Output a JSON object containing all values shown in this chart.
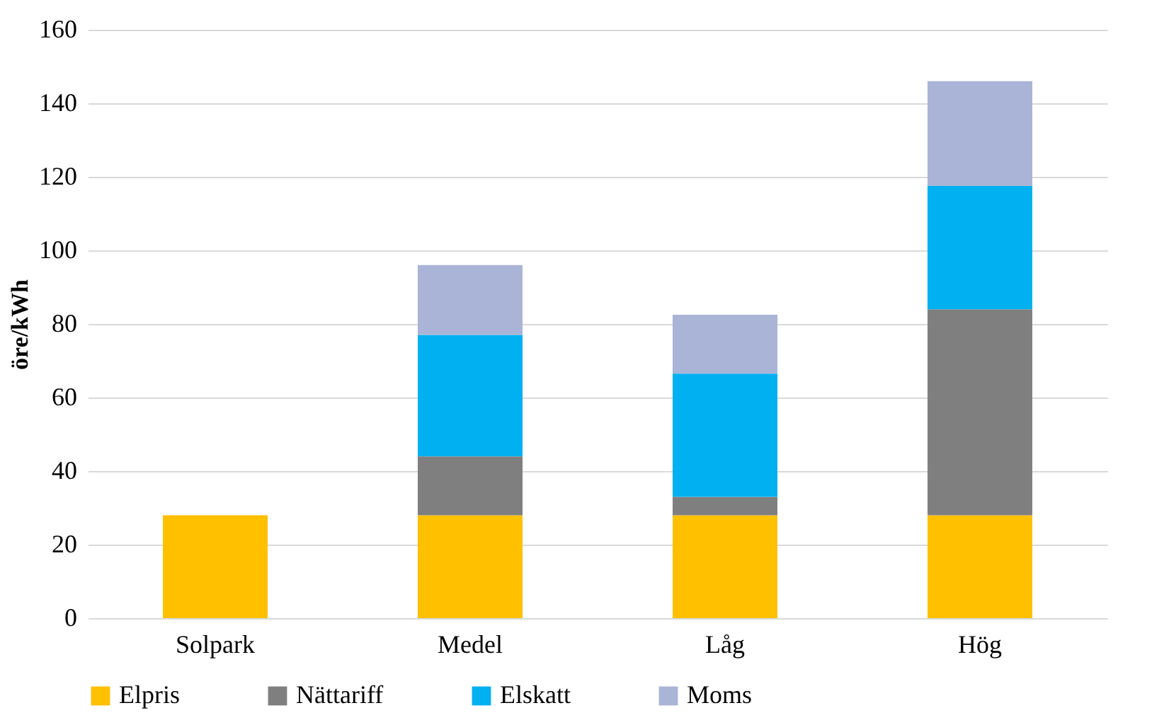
{
  "chart_data": {
    "type": "bar",
    "stacked": true,
    "ylabel": "öre/kWh",
    "categories": [
      "Solpark",
      "Medel",
      "Låg",
      "Hög"
    ],
    "series": [
      {
        "name": "Elpris",
        "color": "#ffc000",
        "values": [
          28,
          28,
          28,
          28
        ]
      },
      {
        "name": "Nättariff",
        "color": "#7f7f7f",
        "values": [
          null,
          16,
          5,
          56
        ]
      },
      {
        "name": "Elskatt",
        "color": "#00b0f0",
        "values": [
          null,
          33,
          33.5,
          33.5
        ]
      },
      {
        "name": "Moms",
        "color": "#a9b4d6",
        "values": [
          null,
          19,
          16,
          28.5
        ]
      }
    ],
    "ylim": [
      0,
      160
    ],
    "yticks": [
      0,
      20,
      40,
      60,
      80,
      100,
      120,
      140,
      160
    ],
    "grid": "y",
    "legend": "bottom"
  }
}
